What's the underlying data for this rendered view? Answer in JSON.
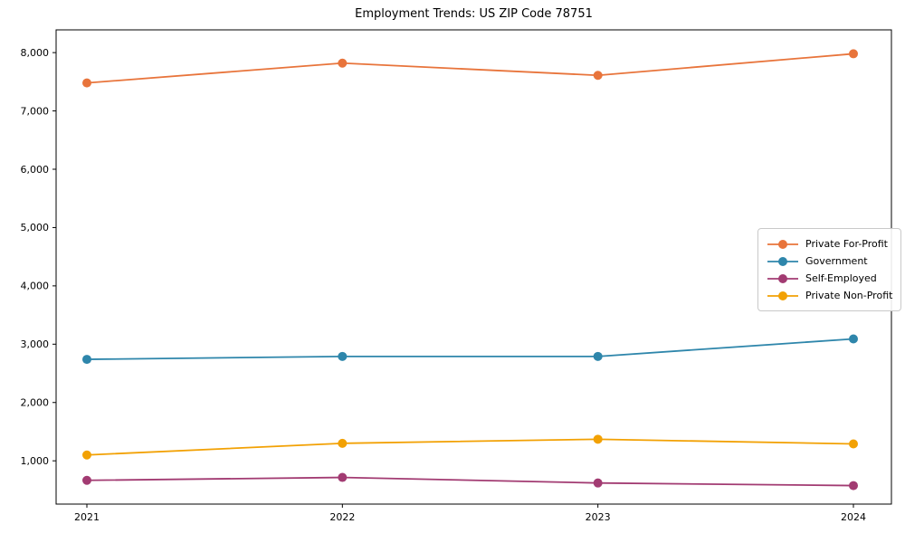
{
  "chart_data": {
    "type": "line",
    "title": "Employment Trends: US ZIP Code 78751",
    "xlabel": "",
    "ylabel": "",
    "x": [
      "2021",
      "2022",
      "2023",
      "2024"
    ],
    "series": [
      {
        "name": "Private For-Profit",
        "color": "#E8743B",
        "values": [
          7480,
          7820,
          7610,
          7980
        ]
      },
      {
        "name": "Government",
        "color": "#2E86AB",
        "values": [
          2740,
          2790,
          2790,
          3090
        ]
      },
      {
        "name": "Self-Employed",
        "color": "#A23B72",
        "values": [
          665,
          715,
          620,
          575
        ]
      },
      {
        "name": "Private Non-Profit",
        "color": "#F2A104",
        "values": [
          1100,
          1300,
          1370,
          1290
        ]
      }
    ],
    "ylim": [
      258,
      8390
    ],
    "yticks": [
      1000,
      2000,
      3000,
      4000,
      5000,
      6000,
      7000,
      8000
    ],
    "ytick_format": "comma",
    "grid": false,
    "marker": "circle",
    "legend_position": "center-right",
    "spine_color": "#000000",
    "text_color": "#000000"
  }
}
